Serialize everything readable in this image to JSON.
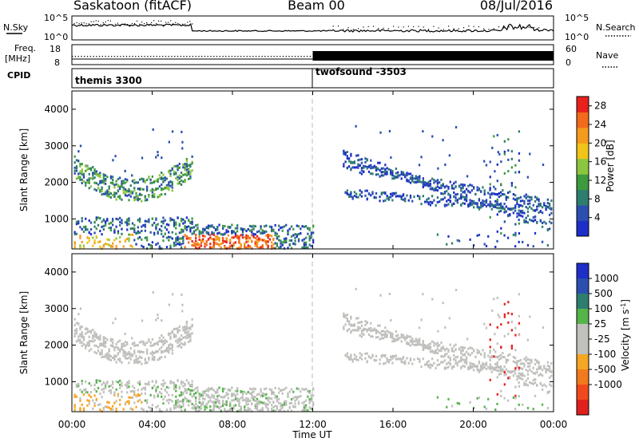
{
  "header": {
    "station": "Saskatoon (fitACF)",
    "beam": "Beam 00",
    "date": "08/Jul/2016"
  },
  "aux_panels": {
    "nsky_label": "N.Sky",
    "nsearch_label": "N.Search",
    "noise_ticks": [
      "10^5",
      "10^0"
    ],
    "freq_label_top": "Freq.",
    "freq_label_unit": "[MHz]",
    "freq_ticks": [
      "18",
      "8"
    ],
    "nave_label": "Nave",
    "nave_ticks": [
      "60",
      "0"
    ],
    "cpid_label": "CPID",
    "cpid_1": "themis 3300",
    "cpid_2": "twofsound -3503"
  },
  "colors": {
    "power_scale": [
      "#1e2ec8",
      "#2a4fb0",
      "#2e7d6e",
      "#3d9a3d",
      "#8cc63f",
      "#f0c419",
      "#f59b1c",
      "#f26a1b",
      "#e8211d"
    ],
    "velocity_scale": [
      "#1e2ec8",
      "#2a4fb0",
      "#2e7d6e",
      "#55b44a",
      "#c0c0bd",
      "#c0c0bd",
      "#f5a623",
      "#f27a1c",
      "#ef4a1b",
      "#e0201c"
    ]
  },
  "chart_data": [
    {
      "type": "heatmap",
      "name": "power",
      "ylabel": "Slant Range [km]",
      "xlabel": "Time UT",
      "ylim": [
        180,
        4500
      ],
      "xlim": [
        0,
        24
      ],
      "y_ticks": [
        1000,
        2000,
        3000,
        4000
      ],
      "x_ticks": [
        "00:00",
        "04:00",
        "08:00",
        "12:00",
        "16:00",
        "20:00",
        "00:00"
      ],
      "colorbar": {
        "label": "Power [dB]",
        "ticks": [
          4,
          8,
          12,
          16,
          20,
          24,
          28
        ],
        "range": [
          0,
          30
        ]
      },
      "echo_regions": [
        {
          "t": [
            0.0,
            6.0
          ],
          "range_km": [
            1500,
            2400
          ],
          "level": "arc"
        },
        {
          "t": [
            0.0,
            12.0
          ],
          "range_km": [
            200,
            1000
          ],
          "level": "strong"
        },
        {
          "t": [
            13.5,
            24.0
          ],
          "range_km": [
            700,
            2800
          ],
          "level": "arc"
        }
      ]
    },
    {
      "type": "heatmap",
      "name": "velocity",
      "ylabel": "Slant Range [km]",
      "xlabel": "Time UT",
      "ylim": [
        180,
        4500
      ],
      "xlim": [
        0,
        24
      ],
      "y_ticks": [
        1000,
        2000,
        3000,
        4000
      ],
      "x_ticks": [
        "00:00",
        "04:00",
        "08:00",
        "12:00",
        "16:00",
        "20:00",
        "00:00"
      ],
      "colorbar": {
        "label": "Velocity [m s^-1]",
        "ticks": [
          1000,
          500,
          100,
          25,
          -25,
          -100,
          -500,
          -1000
        ]
      }
    }
  ]
}
